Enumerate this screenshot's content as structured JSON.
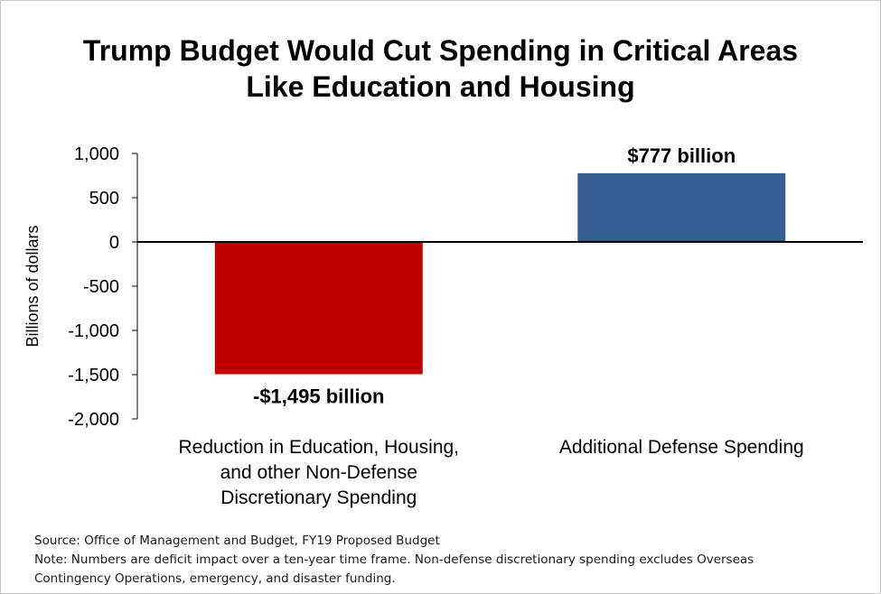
{
  "chart_data": {
    "type": "bar",
    "title_lines": [
      "Trump Budget Would Cut Spending in Critical Areas",
      "Like Education and Housing"
    ],
    "ylabel": "Billions of dollars",
    "xlabel": "",
    "ylim": [
      -2000,
      1000
    ],
    "yticks": [
      1000,
      500,
      0,
      -500,
      -1000,
      -1500,
      -2000
    ],
    "ytick_labels": [
      "1,000",
      "500",
      "0",
      "-500",
      "-1,000",
      "-1,500",
      "-2,000"
    ],
    "categories": [
      [
        "Reduction in Education, Housing,",
        "and other Non-Defense",
        "Discretionary Spending"
      ],
      [
        "Additional Defense Spending"
      ]
    ],
    "values": [
      -1495,
      777
    ],
    "data_labels": [
      "-$1,495 billion",
      "$777 billion"
    ],
    "colors": [
      "#c00000",
      "#376092"
    ],
    "grid": false,
    "legend": "none"
  },
  "footer": {
    "source": "Source: Office of Management and Budget, FY19 Proposed Budget",
    "note_line1": "Note: Numbers are deficit impact over a ten-year time frame. Non-defense discretionary spending excludes Overseas",
    "note_line2": "Contingency Operations, emergency, and disaster funding."
  }
}
